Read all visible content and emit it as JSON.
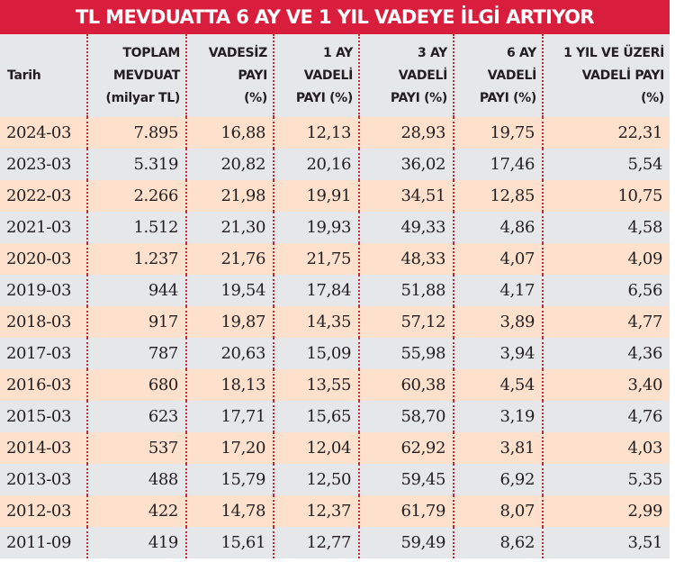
{
  "title": "TL MEVDUATTA 6 AY VE 1 YIL VADEYE İLGİ ARTIYOR",
  "colors": {
    "banner": "#d81e3c",
    "header_bg": "#e6e7e9",
    "row_odd": "#fde1cc",
    "row_even": "#e6e7e9",
    "divider": "#b8303f"
  },
  "columns": [
    {
      "lines": [
        "Tarih"
      ]
    },
    {
      "lines": [
        "TOPLAM",
        "MEVDUAT",
        "(milyar TL)"
      ]
    },
    {
      "lines": [
        "VADESİZ",
        "PAYI",
        "(%)"
      ]
    },
    {
      "lines": [
        "1 AY",
        "VADELİ",
        "PAYI (%)"
      ]
    },
    {
      "lines": [
        "3 AY",
        "VADELİ",
        "PAYI (%)"
      ]
    },
    {
      "lines": [
        "6 AY",
        "VADELİ",
        "PAYI (%)"
      ]
    },
    {
      "lines": [
        "1 YIL VE ÜZERİ",
        "VADELİ PAYI",
        "(%)"
      ]
    }
  ],
  "rows": [
    [
      "2024-03",
      "7.895",
      "16,88",
      "12,13",
      "28,93",
      "19,75",
      "22,31"
    ],
    [
      "2023-03",
      "5.319",
      "20,82",
      "20,16",
      "36,02",
      "17,46",
      "5,54"
    ],
    [
      "2022-03",
      "2.266",
      "21,98",
      "19,91",
      "34,51",
      "12,85",
      "10,75"
    ],
    [
      "2021-03",
      "1.512",
      "21,30",
      "19,93",
      "49,33",
      "4,86",
      "4,58"
    ],
    [
      "2020-03",
      "1.237",
      "21,76",
      "21,75",
      "48,33",
      "4,07",
      "4,09"
    ],
    [
      "2019-03",
      "944",
      "19,54",
      "17,84",
      "51,88",
      "4,17",
      "6,56"
    ],
    [
      "2018-03",
      "917",
      "19,87",
      "14,35",
      "57,12",
      "3,89",
      "4,77"
    ],
    [
      "2017-03",
      "787",
      "20,63",
      "15,09",
      "55,98",
      "3,94",
      "4,36"
    ],
    [
      "2016-03",
      "680",
      "18,13",
      "13,55",
      "60,38",
      "4,54",
      "3,40"
    ],
    [
      "2015-03",
      "623",
      "17,71",
      "15,65",
      "58,70",
      "3,19",
      "4,76"
    ],
    [
      "2014-03",
      "537",
      "17,20",
      "12,04",
      "62,92",
      "3,81",
      "4,03"
    ],
    [
      "2013-03",
      "488",
      "15,79",
      "12,50",
      "59,45",
      "6,92",
      "5,35"
    ],
    [
      "2012-03",
      "422",
      "14,78",
      "12,37",
      "61,79",
      "8,07",
      "2,99"
    ],
    [
      "2011-09",
      "419",
      "15,61",
      "12,77",
      "59,49",
      "8,62",
      "3,51"
    ]
  ]
}
